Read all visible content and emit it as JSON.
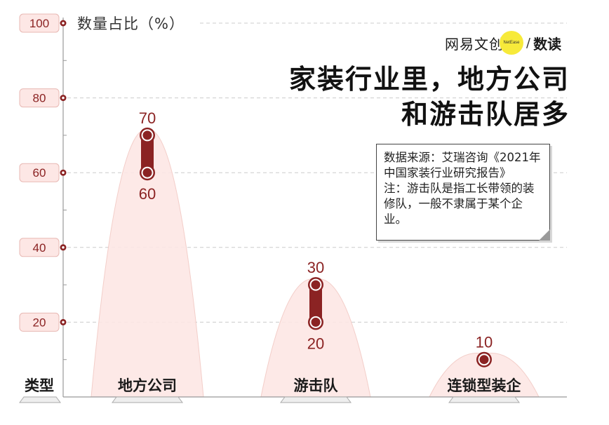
{
  "brand": {
    "name": "网易文创",
    "badge": "NetEase",
    "separator": "/",
    "sub": "数读"
  },
  "headline": {
    "line1": "家装行业里，地方公司",
    "line2": "和游击队居多"
  },
  "note": {
    "source": "数据来源：艾瑞咨询《2021年中国家装行业研究报告》",
    "remark": "注：游击队是指工长带领的装修队，一般不隶属于某个企业。"
  },
  "chart_data": {
    "type": "range",
    "ylabel": "数量占比（%）",
    "xlabel": "类型",
    "ylim": [
      0,
      100
    ],
    "yticks": [
      "20",
      "40",
      "60",
      "80",
      "100"
    ],
    "categories": [
      "地方公司",
      "游击队",
      "连锁型装企"
    ],
    "ranges": [
      {
        "low": 60,
        "high": 70
      },
      {
        "low": 20,
        "high": 30
      },
      {
        "low": 10,
        "high": 10
      }
    ],
    "grid": true,
    "colors": {
      "accent": "#8b2323",
      "fill": "#fde7e5",
      "grid": "#cccccc"
    }
  }
}
